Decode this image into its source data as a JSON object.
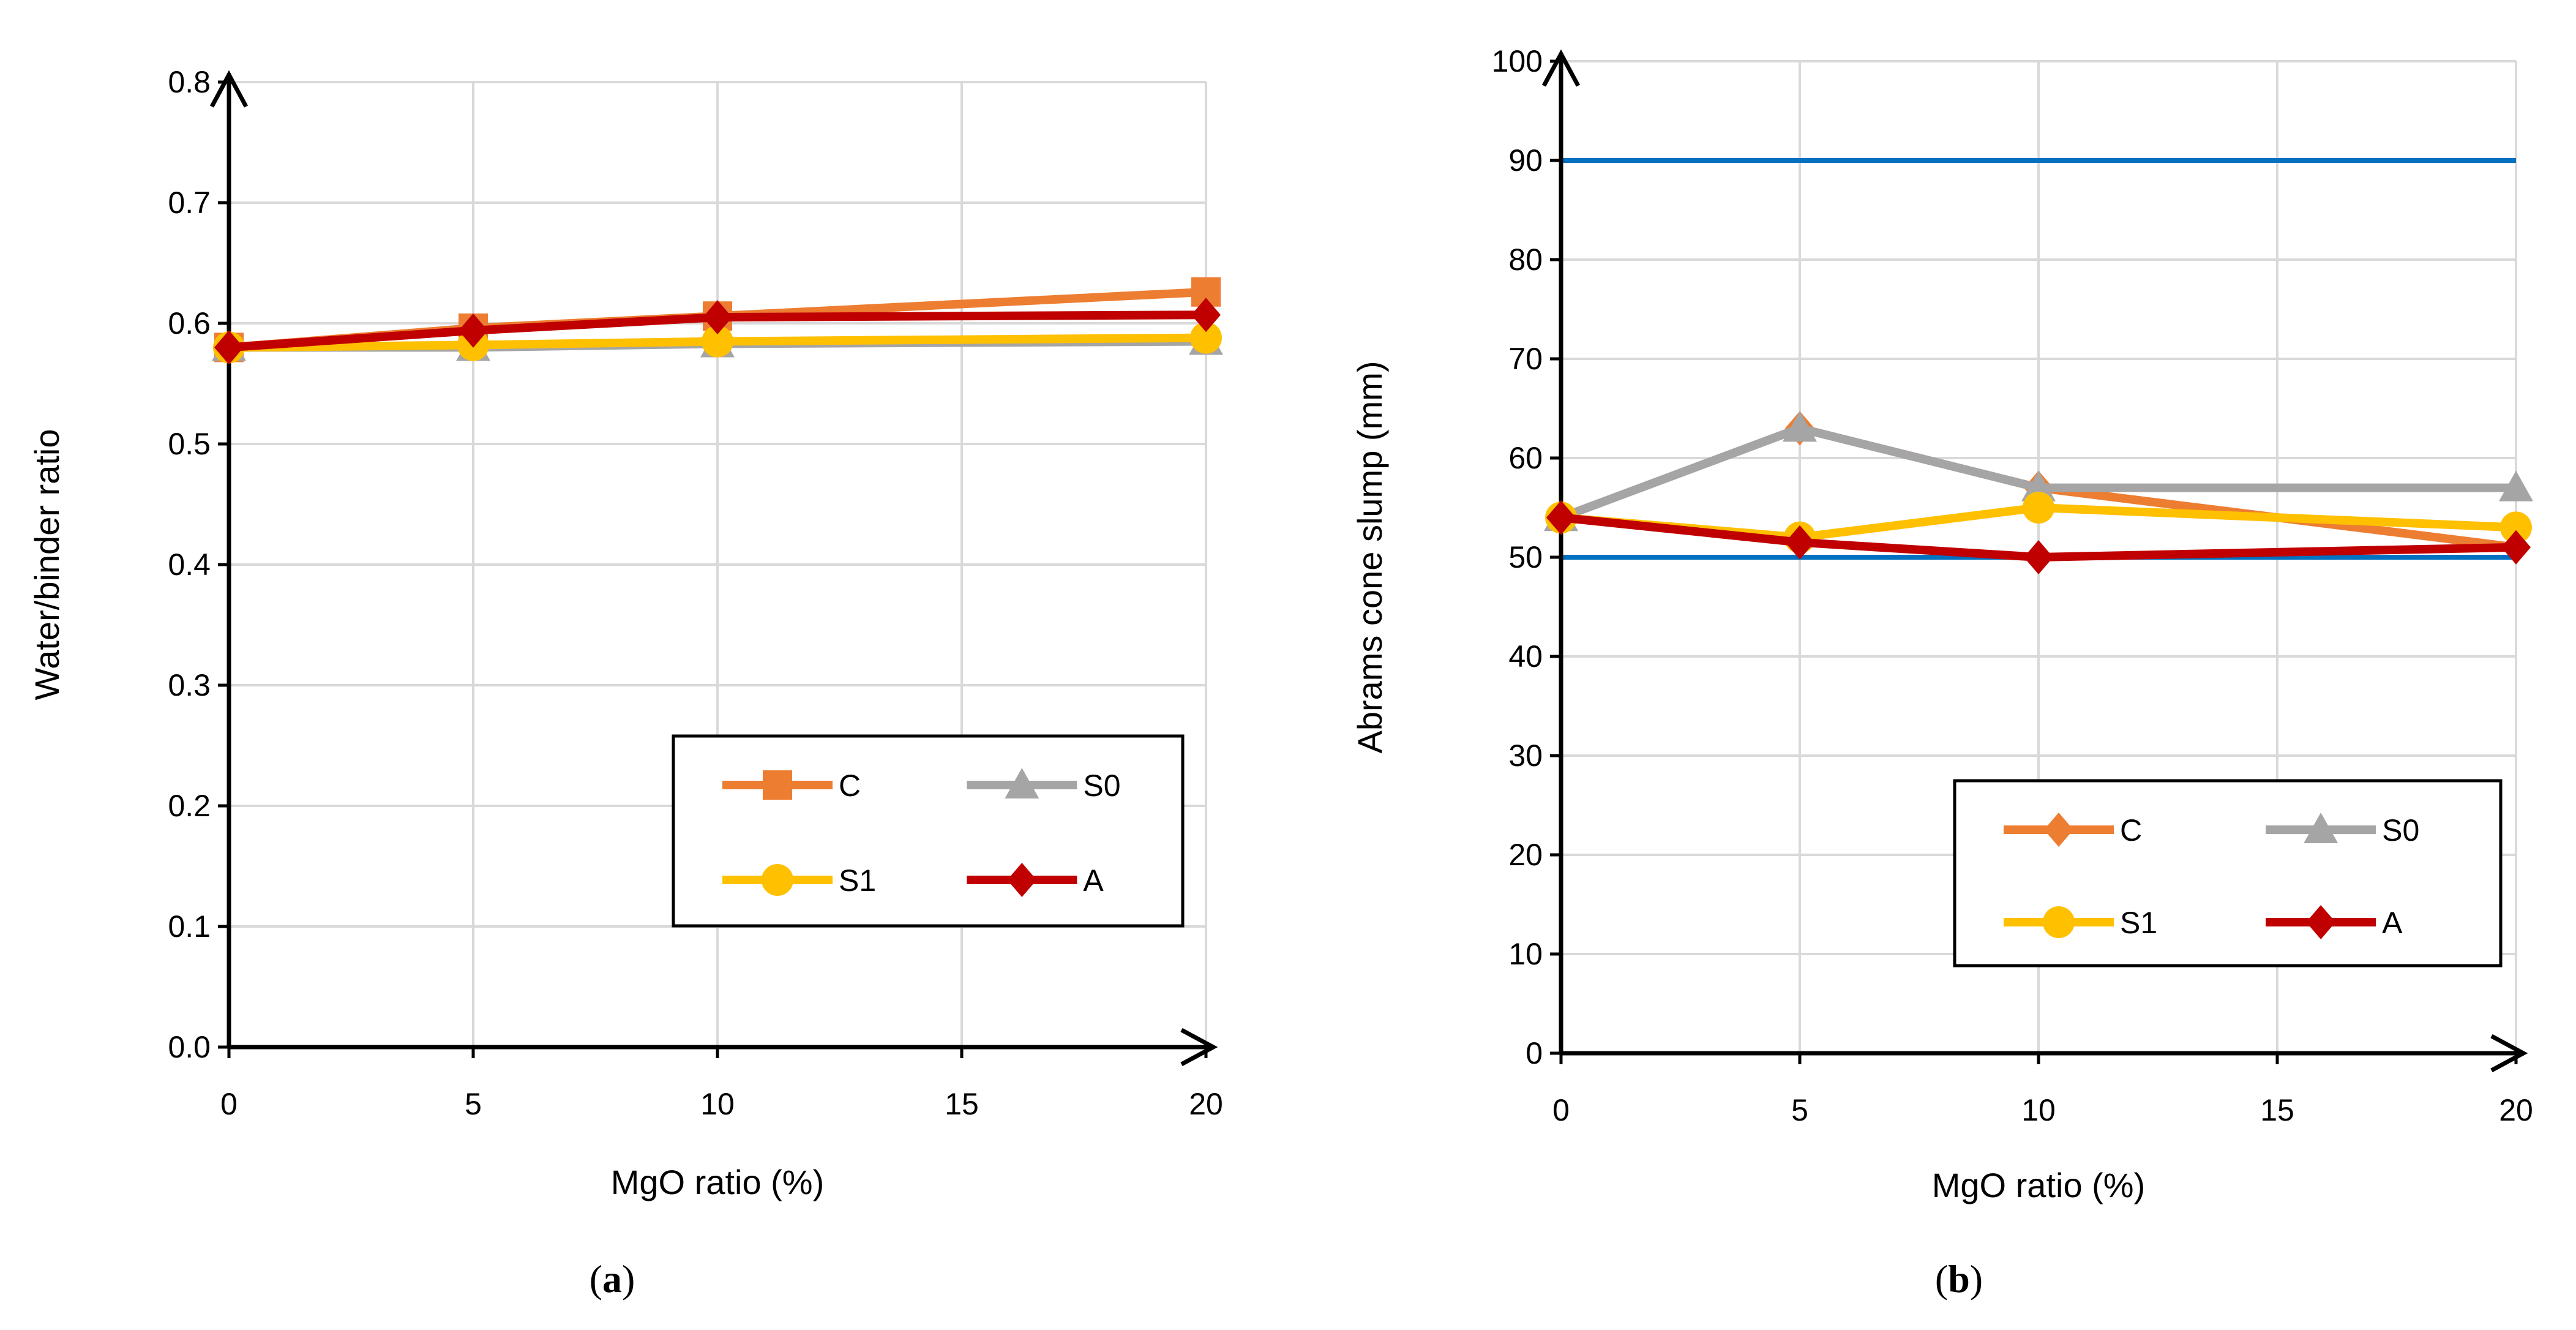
{
  "colors": {
    "C": "#ed7d31",
    "S0": "#a5a5a5",
    "S1": "#ffc000",
    "A": "#c00000",
    "ref": "#0070c0"
  },
  "chart_data": [
    {
      "id": "a",
      "type": "line",
      "panel_label": "a",
      "xlabel": "MgO ratio (%)",
      "ylabel": "Water/binder ratio",
      "x_ticks": [
        "0",
        "5",
        "10",
        "15",
        "20"
      ],
      "y_ticks": [
        "0.0",
        "0.1",
        "0.2",
        "0.3",
        "0.4",
        "0.5",
        "0.6",
        "0.7",
        "0.8"
      ],
      "xlim": [
        0,
        20
      ],
      "ylim": [
        0,
        0.8
      ],
      "grid": true,
      "legend_position": "bottom-right",
      "series": [
        {
          "name": "C",
          "marker": "square",
          "x": [
            0,
            5,
            10,
            20
          ],
          "values": [
            0.58,
            0.596,
            0.606,
            0.626
          ]
        },
        {
          "name": "S0",
          "marker": "triangle",
          "x": [
            0,
            5,
            10,
            20
          ],
          "values": [
            0.58,
            0.58,
            0.583,
            0.585
          ]
        },
        {
          "name": "S1",
          "marker": "circle",
          "x": [
            0,
            5,
            10,
            20
          ],
          "values": [
            0.58,
            0.582,
            0.585,
            0.588
          ]
        },
        {
          "name": "A",
          "marker": "diamond",
          "x": [
            0,
            5,
            10,
            20
          ],
          "values": [
            0.58,
            0.594,
            0.605,
            0.607
          ]
        }
      ]
    },
    {
      "id": "b",
      "type": "line",
      "panel_label": "b",
      "xlabel": "MgO ratio (%)",
      "ylabel": "Abrams cone slump (mm)",
      "x_ticks": [
        "0",
        "5",
        "10",
        "15",
        "20"
      ],
      "y_ticks": [
        "0",
        "10",
        "20",
        "30",
        "40",
        "50",
        "60",
        "70",
        "80",
        "90",
        "100"
      ],
      "xlim": [
        0,
        20
      ],
      "ylim": [
        0,
        100
      ],
      "grid": true,
      "legend_position": "bottom-right",
      "reference_lines": [
        50,
        90
      ],
      "series": [
        {
          "name": "C",
          "marker": "diamond",
          "x": [
            0,
            5,
            10,
            20
          ],
          "values": [
            54,
            63,
            57,
            51
          ]
        },
        {
          "name": "S0",
          "marker": "triangle",
          "x": [
            0,
            5,
            10,
            20
          ],
          "values": [
            54,
            63,
            57,
            57
          ]
        },
        {
          "name": "S1",
          "marker": "circle",
          "x": [
            0,
            5,
            10,
            20
          ],
          "values": [
            54,
            52,
            55,
            53
          ]
        },
        {
          "name": "A",
          "marker": "diamond",
          "x": [
            0,
            5,
            10,
            20
          ],
          "values": [
            54,
            51.5,
            50,
            51
          ]
        }
      ]
    }
  ]
}
